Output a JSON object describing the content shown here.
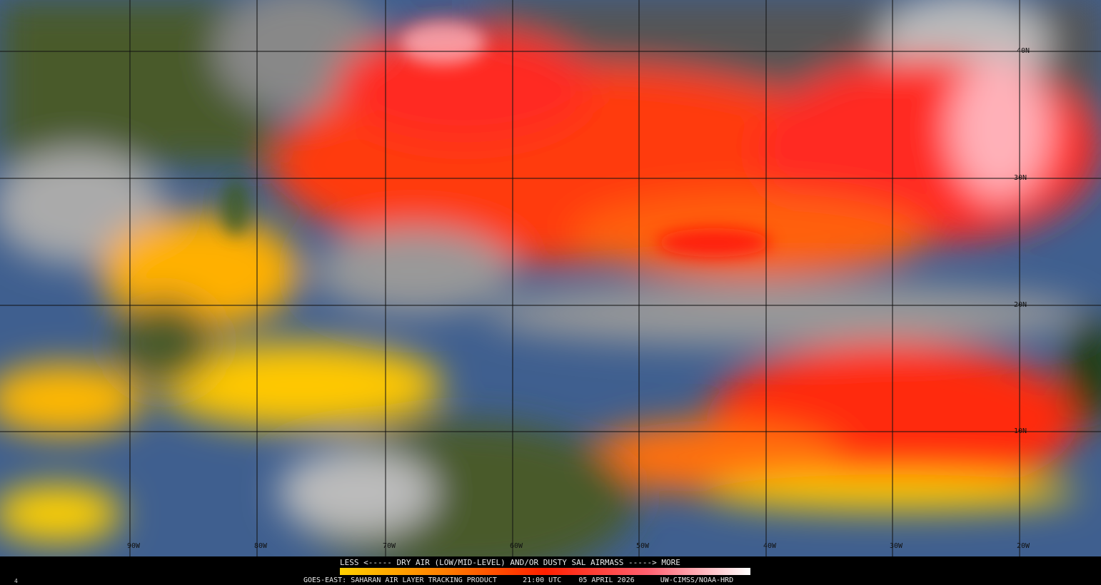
{
  "map": {
    "lat_labels": [
      "40N",
      "30N",
      "20N",
      "10N"
    ],
    "lon_labels": [
      "90W",
      "80W",
      "70W",
      "60W",
      "50W",
      "40W",
      "30W",
      "20W"
    ]
  },
  "legend": {
    "title": "LESS <----- DRY AIR (LOW/MID-LEVEL) AND/OR DUSTY SAL AIRMASS -----> MORE",
    "colors": [
      "#ffd000",
      "#ff8000",
      "#ff2000",
      "#ff6070",
      "#ffffff"
    ]
  },
  "credit": {
    "product": "GOES-EAST: SAHARAN AIR LAYER TRACKING PRODUCT",
    "time": "21:00 UTC",
    "date": "05 APRIL 2026",
    "source": "UW-CIMSS/NOAA-HRD"
  },
  "corner_mark": "4"
}
